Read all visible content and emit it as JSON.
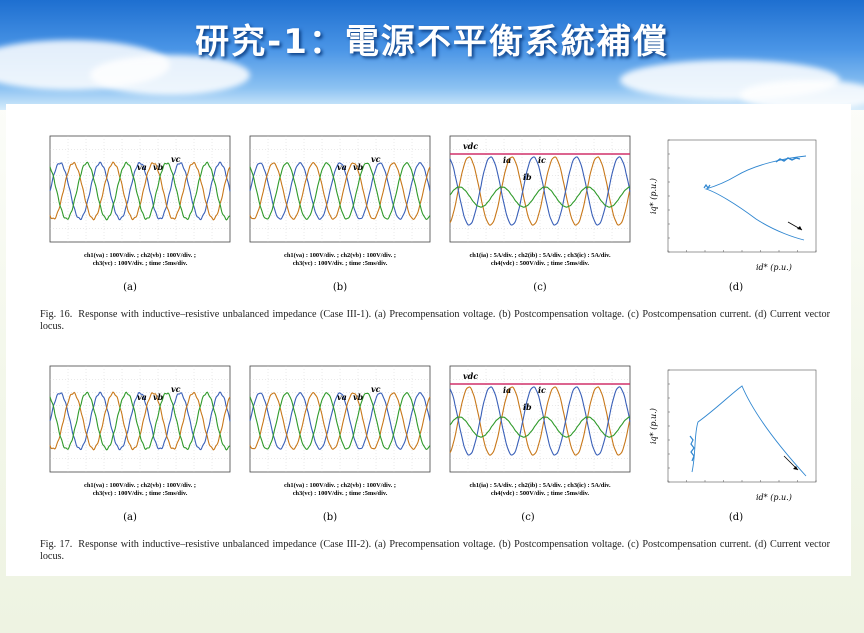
{
  "slide": {
    "title": "研究-1：電源不平衡系統補償"
  },
  "figures": [
    {
      "id": "fig16",
      "panels": [
        {
          "label": "(a)",
          "lines": [
            "ch1(va) : 100V/div. ; ch2(vb) : 100V/div. ;",
            "ch3(vc) : 100V/div. ; time :5ms/div."
          ],
          "signals": [
            "va",
            "vb",
            "vc"
          ]
        },
        {
          "label": "(b)",
          "lines": [
            "ch1(va) : 100V/div. ; ch2(vb) : 100V/div. ;",
            "ch3(vc) : 100V/div. ; time :5ms/div."
          ],
          "signals": [
            "va",
            "vb",
            "vc"
          ]
        },
        {
          "label": "(c)",
          "lines": [
            "ch1(ia) : 5A/div. ; ch2(ib) : 5A/div. ; ch3(ic) : 5A/div.",
            "ch4(vdc) : 500V/div. ; time :5ms/div."
          ],
          "signals": [
            "vdc",
            "ia",
            "ic",
            "ib"
          ]
        },
        {
          "label": "(d)",
          "xlabel": "id* (p.u.)",
          "ylabel": "iq* (p.u.)"
        }
      ],
      "caption_label": "Fig. 16.",
      "caption": "Response with inductive–resistive unbalanced impedance (Case III-1). (a) Precompensation voltage. (b) Postcompensation voltage. (c) Postcompensation current. (d) Current vector locus."
    },
    {
      "id": "fig17",
      "panels": [
        {
          "label": "(a)",
          "lines": [
            "ch1(va) : 100V/div. ; ch2(vb) : 100V/div. ;",
            "ch3(vc) : 100V/div. ; time :5ms/div."
          ],
          "signals": [
            "va",
            "vb",
            "vc"
          ]
        },
        {
          "label": "(b)",
          "lines": [
            "ch1(va) : 100V/div. ; ch2(vb) : 100V/div. ;",
            "ch3(vc) : 100V/div. ; time :5ms/div."
          ],
          "signals": [
            "va",
            "vb",
            "vc"
          ]
        },
        {
          "label": "(c)",
          "lines": [
            "ch1(ia) : 5A/div. ; ch2(ib) : 5A/div. ; ch3(ic) : 5A/div.",
            "ch4(vdc) : 500V/div. ; time :5ms/div."
          ],
          "signals": [
            "vdc",
            "ia",
            "ic",
            "ib"
          ]
        },
        {
          "label": "(d)",
          "xlabel": "id* (p.u.)",
          "ylabel": "iq* (p.u.)"
        }
      ],
      "caption_label": "Fig. 17.",
      "caption": "Response with inductive–resistive unbalanced impedance (Case III-2). (a) Precompensation voltage. (b) Postcompensation voltage. (c) Postcompensation current. (d) Current vector locus."
    }
  ],
  "colors": {
    "phase_a": "#3a60b8",
    "phase_b": "#c8781a",
    "phase_c": "#2f9a2a",
    "vdc": "#d0306a",
    "locus": "#2f86d0"
  }
}
